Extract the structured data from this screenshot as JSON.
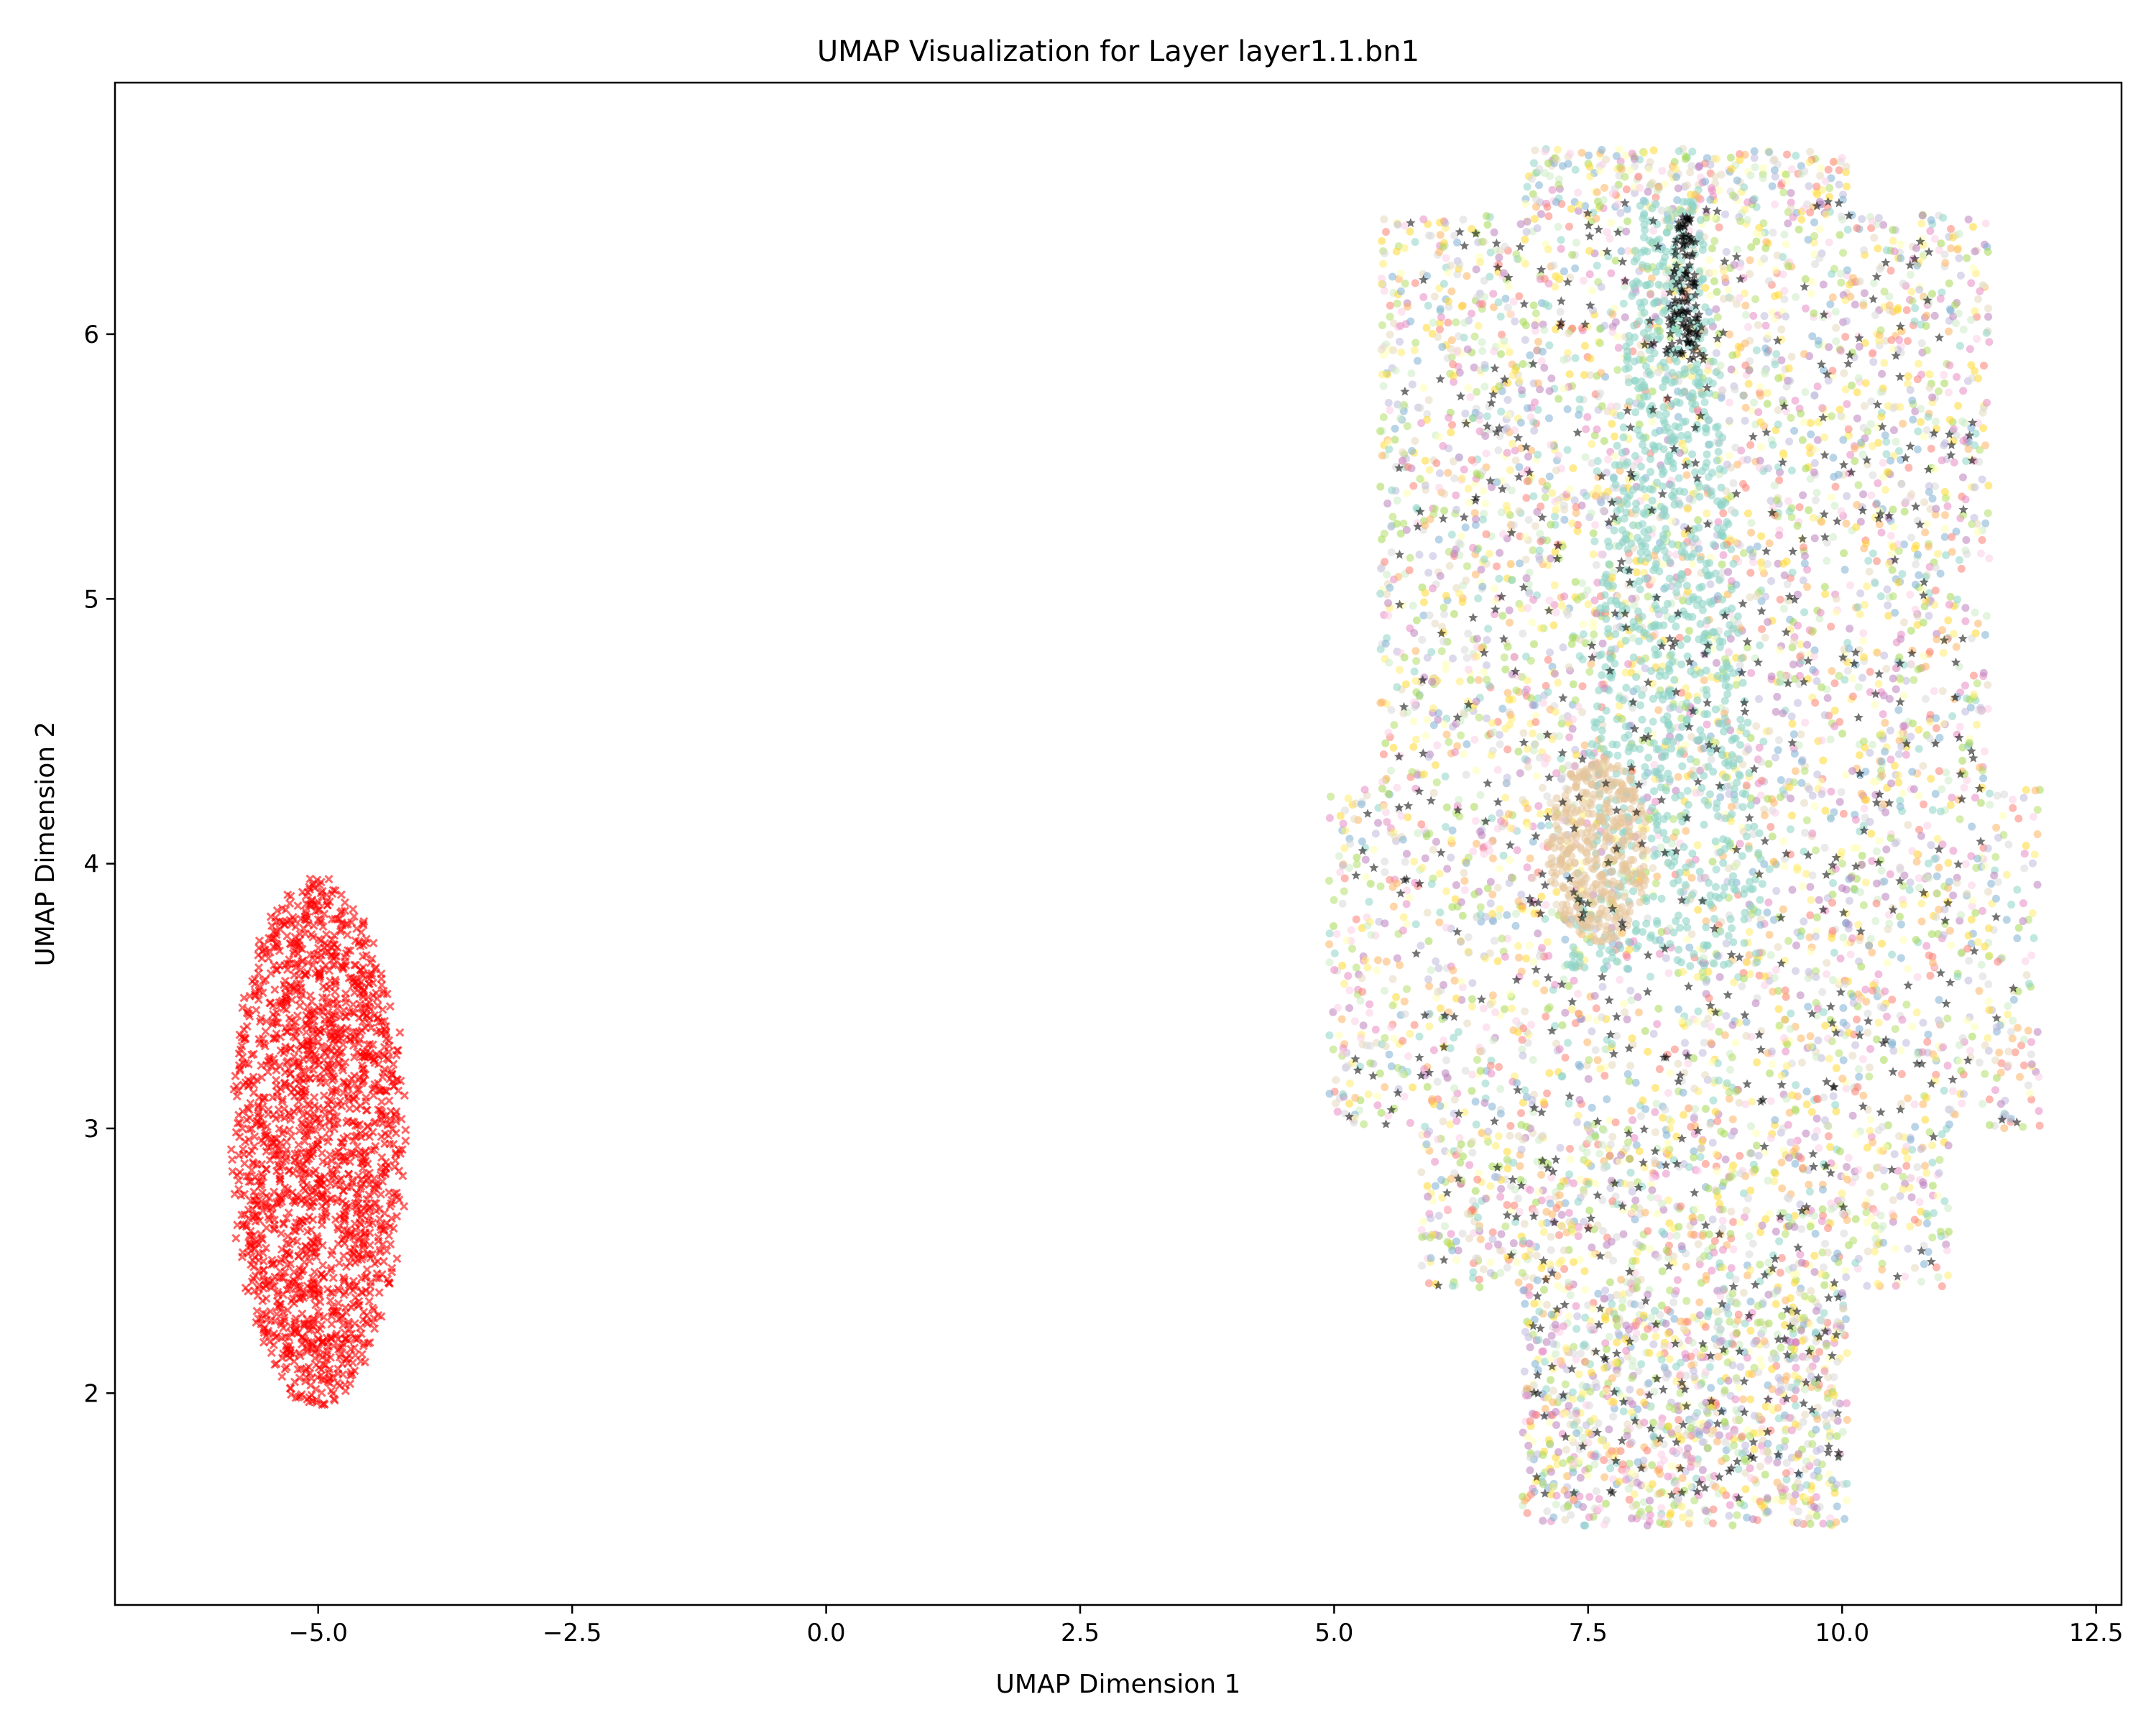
{
  "chart_data": {
    "type": "scatter",
    "title": "UMAP Visualization for Layer layer1.1.bn1",
    "xlabel": "UMAP Dimension 1",
    "ylabel": "UMAP Dimension 2",
    "xlim": [
      -7.0,
      12.75
    ],
    "ylim": [
      1.2,
      6.95
    ],
    "xticks": [
      {
        "value": -5.0,
        "label": "−5.0"
      },
      {
        "value": -2.5,
        "label": "−2.5"
      },
      {
        "value": 0.0,
        "label": "0.0"
      },
      {
        "value": 2.5,
        "label": "2.5"
      },
      {
        "value": 5.0,
        "label": "5.0"
      },
      {
        "value": 7.5,
        "label": "7.5"
      },
      {
        "value": 10.0,
        "label": "10.0"
      },
      {
        "value": 12.5,
        "label": "12.5"
      }
    ],
    "yticks": [
      {
        "value": 2,
        "label": "2"
      },
      {
        "value": 3,
        "label": "3"
      },
      {
        "value": 4,
        "label": "4"
      },
      {
        "value": 5,
        "label": "5"
      },
      {
        "value": 6,
        "label": "6"
      }
    ],
    "grid": false,
    "series": [
      {
        "marker": "x",
        "color": "#ff0000",
        "center": [
          -5.0,
          2.95
        ],
        "x_range": [
          -5.9,
          -4.1
        ],
        "y_range": [
          1.95,
          3.95
        ],
        "approx_points": 1800
      },
      {
        "marker": "o",
        "colors": [
          "#8dd3c7",
          "#ffffb3",
          "#bebada",
          "#fb8072",
          "#80b1d3",
          "#fdb462",
          "#b3de69",
          "#fccde5",
          "#d9d9d9",
          "#bc80bd",
          "#ccebc5",
          "#ffed6f",
          "#e5d8bd",
          "#a6d854",
          "#e78ac3",
          "#ffd92f"
        ],
        "x_range": [
          4.9,
          11.9
        ],
        "y_range": [
          1.5,
          6.7
        ],
        "approx_points": 6500
      },
      {
        "marker": "*",
        "color": "#000000",
        "x_range": [
          5.0,
          11.6
        ],
        "y_range": [
          1.6,
          6.5
        ],
        "approx_points": 700
      }
    ]
  }
}
